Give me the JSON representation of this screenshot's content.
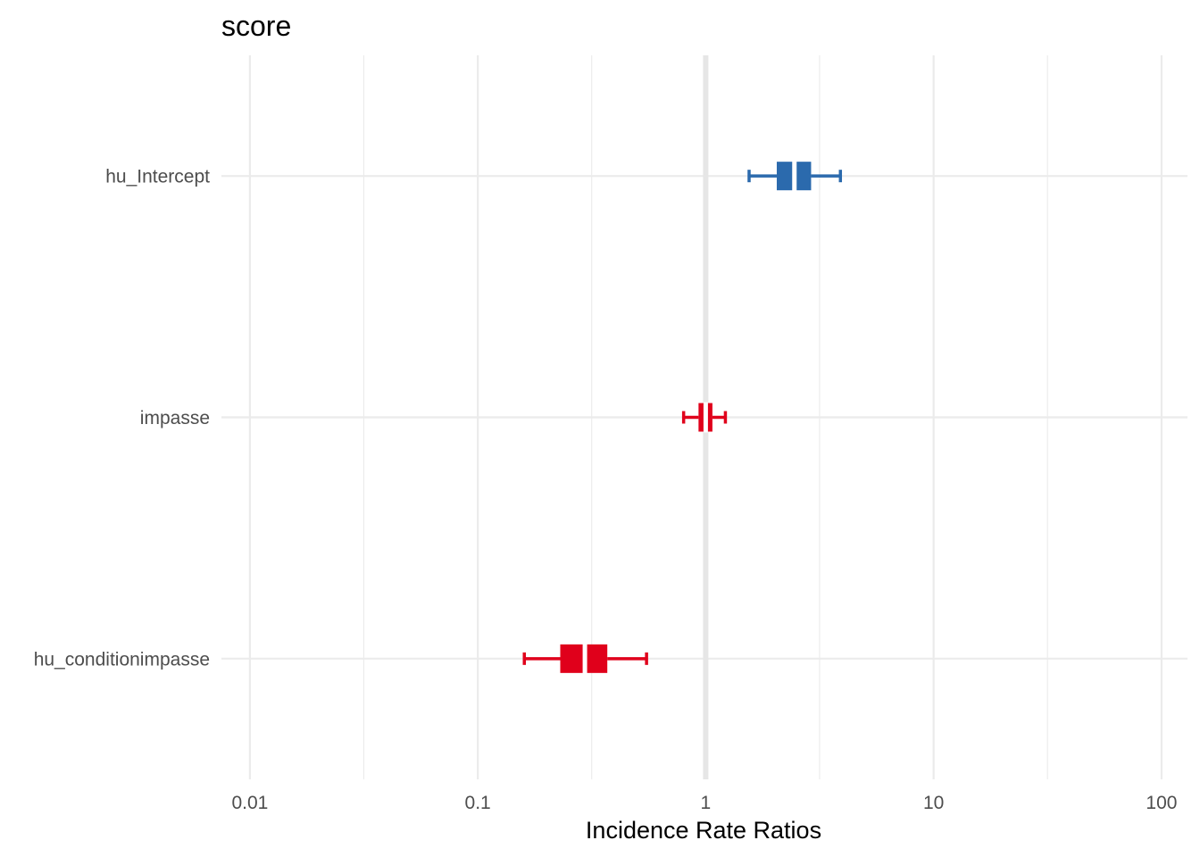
{
  "chart_data": {
    "type": "forest",
    "title": "score",
    "xlabel": "Incidence Rate Ratios",
    "ylabel": "",
    "x_scale": "log10",
    "xlim": [
      0.0075,
      130
    ],
    "x_ticks": [
      0.01,
      0.1,
      1,
      10,
      100
    ],
    "x_tick_labels": [
      "0.01",
      "0.1",
      "1",
      "10",
      "100"
    ],
    "x_minor_ticks": [
      0.0316,
      0.316,
      3.16,
      31.6
    ],
    "reference_line": 1,
    "grid": true,
    "legend": "none",
    "terms": [
      {
        "label": "hu_Intercept",
        "estimate": 2.45,
        "inner_low": 2.05,
        "inner_high": 2.9,
        "outer_low": 1.55,
        "outer_high": 3.9,
        "color": "#2b6aad"
      },
      {
        "label": "impasse",
        "estimate": 1.0,
        "inner_low": 0.93,
        "inner_high": 1.07,
        "outer_low": 0.8,
        "outer_high": 1.22,
        "color": "#e0001b"
      },
      {
        "label": "hu_conditionimpasse",
        "estimate": 0.295,
        "inner_low": 0.23,
        "inner_high": 0.37,
        "outer_low": 0.16,
        "outer_high": 0.55,
        "color": "#e0001b"
      }
    ]
  }
}
